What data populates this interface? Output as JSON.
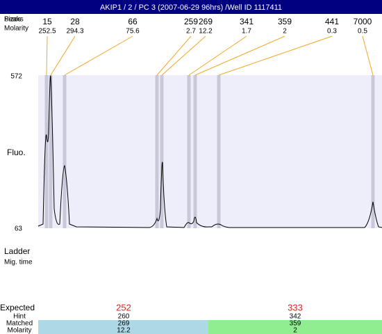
{
  "header": {
    "title": "AKIP1 / 2 / PC 3 (2007-06-29 96hrs) /Well ID 1117411"
  },
  "labels": {
    "peaks": "Peaks",
    "sizes": "Sizes",
    "molarity": "Molarity",
    "fluo": "Fluo.",
    "y_max": "572",
    "y_min": "63",
    "ladder": "Ladder",
    "mig_time": "Mig. time"
  },
  "peaks": [
    {
      "size": "15",
      "molarity": "252.5"
    },
    {
      "size": "28",
      "molarity": "294.3"
    },
    {
      "size": "66",
      "molarity": "75.6"
    },
    {
      "size": "259",
      "molarity": "2.7"
    },
    {
      "size": "269",
      "molarity": "12.2"
    },
    {
      "size": "341",
      "molarity": "1.7"
    },
    {
      "size": "359",
      "molarity": "2"
    },
    {
      "size": "441",
      "molarity": "0.3"
    },
    {
      "size": "7000",
      "molarity": "0.5"
    }
  ],
  "table": {
    "expected_label": "Expected",
    "hint_label": "Hint",
    "matched_label": "Matched",
    "molarity_label": "Molarity",
    "columns": [
      {
        "expected": "252",
        "hint": "260",
        "matched": "269",
        "molarity": "12.2"
      },
      {
        "expected": "333",
        "hint": "342",
        "matched": "359",
        "molarity": "2"
      }
    ]
  }
}
